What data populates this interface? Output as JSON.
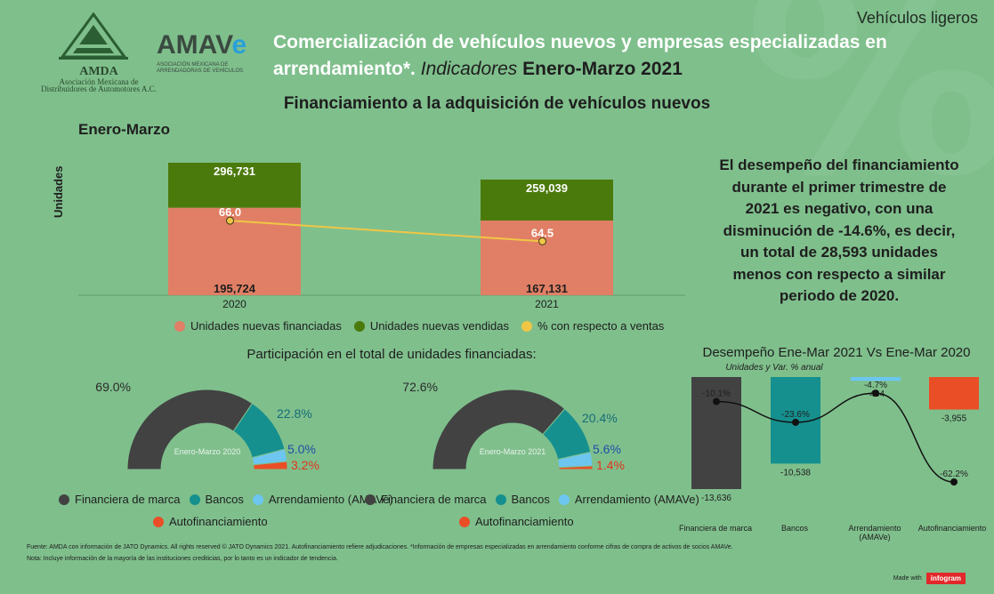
{
  "header": {
    "corner_label": "Vehículos ligeros",
    "title_part1": "Comercialización de vehículos nuevos y empresas especializadas en arrendamiento*.",
    "title_part2": "Indicadores",
    "title_part3": "Enero-Marzo 2021",
    "section_title": "Financiamiento a la adquisición de vehículos nuevos"
  },
  "logos": {
    "amda_name": "AMDA",
    "amda_sub": "Asociación Mexicana de Distribuidores de Automotores A.C.",
    "amave_name": "AMAV",
    "amave_e": "e",
    "amave_sub": "ASOCIACIÓN MEXICANA DE ARRENDADORAS DE VEHÍCULOS"
  },
  "colors": {
    "background": "#7fbf8c",
    "financiadas": "#e07f65",
    "vendidas": "#4b7a0c",
    "porcentaje": "#f0c645",
    "financiera": "#424242",
    "bancos": "#15908f",
    "arrendamiento": "#6cc6f0",
    "autofinanciamiento": "#ea4e26"
  },
  "chart_data": [
    {
      "type": "bar",
      "title": "Enero-Marzo",
      "ylabel": "Unidades",
      "categories": [
        "2020",
        "2021"
      ],
      "series": [
        {
          "name": "Unidades nuevas financiadas",
          "values": [
            195724,
            167131
          ],
          "labels": [
            "195,724",
            "167,131"
          ]
        },
        {
          "name": "Unidades nuevas vendidas",
          "values": [
            296731,
            259039
          ],
          "labels": [
            "296,731",
            "259,039"
          ]
        },
        {
          "name": "% con respecto a ventas",
          "values": [
            66.0,
            64.5
          ],
          "labels": [
            "66.0",
            "64.5"
          ]
        }
      ]
    },
    {
      "type": "pie",
      "title": "Participación en el total de unidades financiadas:",
      "center_label": "Enero-Marzo 2020",
      "categories": [
        "Financiera de marca",
        "Bancos",
        "Arrendamiento (AMAVe)",
        "Autofinanciamiento"
      ],
      "values": [
        69.0,
        22.8,
        5.0,
        3.2
      ],
      "labels": [
        "69.0%",
        "22.8%",
        "5.0%",
        "3.2%"
      ]
    },
    {
      "type": "pie",
      "center_label": "Enero-Marzo 2021",
      "categories": [
        "Financiera de marca",
        "Bancos",
        "Arrendamiento (AMAVe)",
        "Autofinanciamiento"
      ],
      "values": [
        72.6,
        20.4,
        5.6,
        1.4
      ],
      "labels": [
        "72.6%",
        "20.4%",
        "5.6%",
        "1.4%"
      ]
    },
    {
      "type": "bar",
      "title": "Desempeño Ene-Mar 2021 Vs Ene-Mar 2020",
      "subtitle": "Unidades y Var. % anual",
      "categories": [
        "Financiera de marca",
        "Bancos",
        "Arrendamiento (AMAVe)",
        "Autofinanciamiento"
      ],
      "series": [
        {
          "name": "Unidades",
          "values": [
            -13636,
            -10538,
            -464,
            -3955
          ],
          "labels": [
            "-13,636",
            "-10,538",
            "-464",
            "-3,955"
          ]
        },
        {
          "name": "Var. % anual",
          "values": [
            -10.1,
            -23.6,
            -4.7,
            -62.2
          ],
          "labels": [
            "-10.1%",
            "-23.6%",
            "-4.7%",
            "-62.2%"
          ]
        }
      ]
    }
  ],
  "legends": {
    "main": [
      "Unidades nuevas financiadas",
      "Unidades nuevas vendidas",
      "% con respecto a ventas"
    ],
    "donut": [
      "Financiera de marca",
      "Bancos",
      "Arrendamiento (AMAVe)",
      "Autofinanciamiento"
    ]
  },
  "summary": "El desempeño del financiamiento durante el primer trimestre de 2021 es negativo, con una disminución de -14.6%, es decir, un total de 28,593 unidades menos con respecto a similar periodo de 2020.",
  "perf_categories": [
    "Financiera de marca",
    "Bancos",
    "Arrendamiento (AMAVe)",
    "Autofinanciamiento"
  ],
  "footer": {
    "source": "Fuente: AMDA con información de JATO Dynamics. All rights reserved © JATO Dynamics 2021. Autofinanciamiento refiere adjudicaciones. *Información de empresas especializadas en arrendamiento conforme cifras de compra de activos de socios AMAVe.",
    "note": "Nota: Incluye información de la mayoría de las instituciones crediticias, por lo tanto es un indicador de tendencia.",
    "made_with": "Made with",
    "brand": "infogram"
  }
}
